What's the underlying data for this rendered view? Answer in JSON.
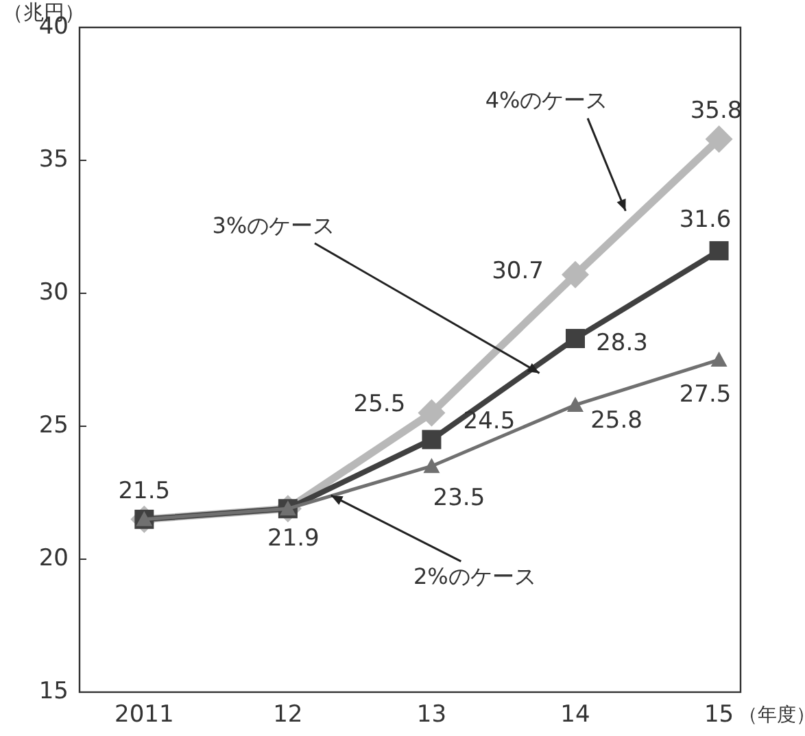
{
  "chart_data": {
    "type": "line",
    "ylabel": "（兆円）",
    "xlabel": "（年度）",
    "categories": [
      "2011",
      "12",
      "13",
      "14",
      "15"
    ],
    "ylim": [
      15,
      40
    ],
    "yticks": [
      15,
      20,
      25,
      30,
      35,
      40
    ],
    "line_style": "solid",
    "series": [
      {
        "name": "4%のケース",
        "color": "#b8b8b8",
        "marker": "diamond",
        "values": [
          21.5,
          21.9,
          25.5,
          30.7,
          35.8
        ],
        "value_labels": [
          "21.5",
          "21.9",
          "25.5",
          "30.7",
          "35.8"
        ]
      },
      {
        "name": "3%のケース",
        "color": "#404040",
        "marker": "square",
        "values": [
          21.5,
          21.9,
          24.5,
          28.3,
          31.6
        ],
        "value_labels": [
          null,
          null,
          "24.5",
          "28.3",
          "31.6"
        ]
      },
      {
        "name": "2%のケース",
        "color": "#707070",
        "marker": "triangle",
        "values": [
          21.5,
          21.9,
          23.5,
          25.8,
          27.5
        ],
        "value_labels": [
          null,
          null,
          "23.5",
          "25.8",
          "27.5"
        ]
      }
    ]
  }
}
